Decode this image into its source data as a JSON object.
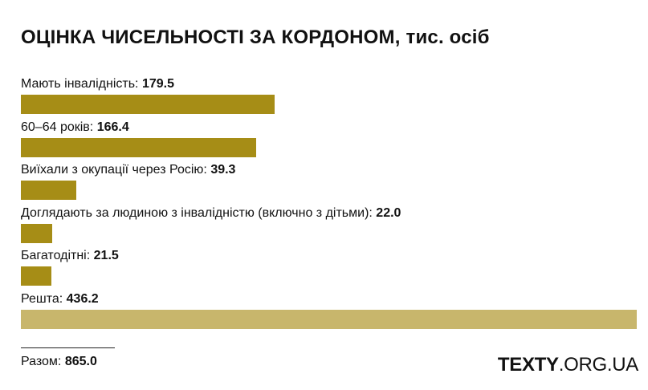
{
  "title": "ОЦІНКА ЧИСЕЛЬНОСТІ ЗА КОРДОНОМ,",
  "title_unit": "тис. осіб",
  "colors": {
    "bar": "#a68d16",
    "bar_rest": "#c8b66c"
  },
  "chart_data": {
    "type": "bar",
    "orientation": "horizontal",
    "categories": [
      "Мають інвалідність:",
      "60–64 років:",
      "Виїхали з окупації через Росію:",
      "Доглядають за людиною з інвалідністю (включно з дітьми):",
      "Багатодітні:",
      "Решта:"
    ],
    "value_labels": [
      "179.5",
      "166.4",
      "39.3",
      "22.0",
      "21.5",
      "436.2"
    ],
    "values": [
      179.5,
      166.4,
      39.3,
      22.0,
      21.5,
      436.2
    ],
    "xlim": [
      0,
      436.2
    ],
    "grid": false,
    "legend": "none"
  },
  "total": {
    "label": "Разом:",
    "value": "865.0"
  },
  "brand": {
    "bold": "TEXTY",
    "rest": ".ORG.UA"
  }
}
